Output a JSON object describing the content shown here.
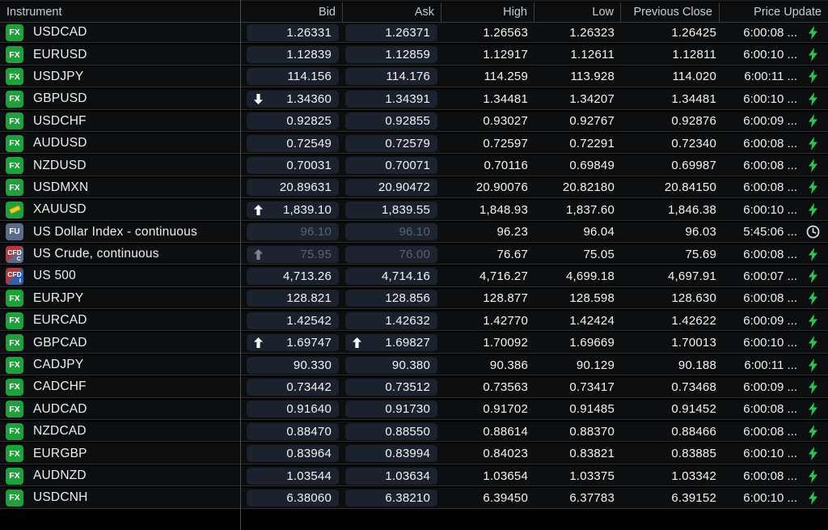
{
  "table": {
    "columns": [
      {
        "label": "Instrument"
      },
      {
        "label": "Bid"
      },
      {
        "label": "Ask"
      },
      {
        "label": "High"
      },
      {
        "label": "Low"
      },
      {
        "label": "Previous Close"
      },
      {
        "label": "Price Update"
      }
    ],
    "rows": [
      {
        "instrument": "USDCAD",
        "icon": "fx",
        "bid": "1.26331",
        "ask": "1.26371",
        "bid_arrow": null,
        "ask_arrow": null,
        "high": "1.26563",
        "low": "1.26323",
        "prev_close": "1.26425",
        "price_update": "6:00:08 ...",
        "status_icon": "lightning",
        "muted": false
      },
      {
        "instrument": "EURUSD",
        "icon": "fx",
        "bid": "1.12839",
        "ask": "1.12859",
        "bid_arrow": null,
        "ask_arrow": null,
        "high": "1.12917",
        "low": "1.12611",
        "prev_close": "1.12811",
        "price_update": "6:00:10 ...",
        "status_icon": "lightning",
        "muted": false
      },
      {
        "instrument": "USDJPY",
        "icon": "fx",
        "bid": "114.156",
        "ask": "114.176",
        "bid_arrow": null,
        "ask_arrow": null,
        "high": "114.259",
        "low": "113.928",
        "prev_close": "114.020",
        "price_update": "6:00:11 ...",
        "status_icon": "lightning",
        "muted": false
      },
      {
        "instrument": "GBPUSD",
        "icon": "fx",
        "bid": "1.34360",
        "ask": "1.34391",
        "bid_arrow": "down",
        "ask_arrow": null,
        "high": "1.34481",
        "low": "1.34207",
        "prev_close": "1.34481",
        "price_update": "6:00:10 ...",
        "status_icon": "lightning",
        "muted": false
      },
      {
        "instrument": "USDCHF",
        "icon": "fx",
        "bid": "0.92825",
        "ask": "0.92855",
        "bid_arrow": null,
        "ask_arrow": null,
        "high": "0.93027",
        "low": "0.92767",
        "prev_close": "0.92876",
        "price_update": "6:00:09 ...",
        "status_icon": "lightning",
        "muted": false
      },
      {
        "instrument": "AUDUSD",
        "icon": "fx",
        "bid": "0.72549",
        "ask": "0.72579",
        "bid_arrow": null,
        "ask_arrow": null,
        "high": "0.72597",
        "low": "0.72291",
        "prev_close": "0.72340",
        "price_update": "6:00:08 ...",
        "status_icon": "lightning",
        "muted": false
      },
      {
        "instrument": "NZDUSD",
        "icon": "fx",
        "bid": "0.70031",
        "ask": "0.70071",
        "bid_arrow": null,
        "ask_arrow": null,
        "high": "0.70116",
        "low": "0.69849",
        "prev_close": "0.69987",
        "price_update": "6:00:08 ...",
        "status_icon": "lightning",
        "muted": false
      },
      {
        "instrument": "USDMXN",
        "icon": "fx",
        "bid": "20.89631",
        "ask": "20.90472",
        "bid_arrow": null,
        "ask_arrow": null,
        "high": "20.90076",
        "low": "20.82180",
        "prev_close": "20.84150",
        "price_update": "6:00:08 ...",
        "status_icon": "lightning",
        "muted": false
      },
      {
        "instrument": "XAUUSD",
        "icon": "gold",
        "bid": "1,839.10",
        "ask": "1,839.55",
        "bid_arrow": "up",
        "ask_arrow": null,
        "high": "1,848.93",
        "low": "1,837.60",
        "prev_close": "1,846.38",
        "price_update": "6:00:10 ...",
        "status_icon": "lightning",
        "muted": false
      },
      {
        "instrument": "US Dollar Index - continuous",
        "icon": "fu",
        "bid": "96.10",
        "ask": "96.10",
        "bid_arrow": null,
        "ask_arrow": null,
        "high": "96.23",
        "low": "96.04",
        "prev_close": "96.03",
        "price_update": "5:45:06 ...",
        "status_icon": "clock",
        "muted": true
      },
      {
        "instrument": "US Crude, continuous",
        "icon": "cfd-c",
        "bid": "75.95",
        "ask": "76.00",
        "bid_arrow": "up-gray",
        "ask_arrow": null,
        "high": "76.67",
        "low": "75.05",
        "prev_close": "75.69",
        "price_update": "6:00:08 ...",
        "status_icon": "lightning",
        "muted": true
      },
      {
        "instrument": "US 500",
        "icon": "cfd-i",
        "bid": "4,713.26",
        "ask": "4,714.16",
        "bid_arrow": null,
        "ask_arrow": null,
        "high": "4,716.27",
        "low": "4,699.18",
        "prev_close": "4,697.91",
        "price_update": "6:00:07 ...",
        "status_icon": "lightning",
        "muted": false
      },
      {
        "instrument": "EURJPY",
        "icon": "fx",
        "bid": "128.821",
        "ask": "128.856",
        "bid_arrow": null,
        "ask_arrow": null,
        "high": "128.877",
        "low": "128.598",
        "prev_close": "128.630",
        "price_update": "6:00:08 ...",
        "status_icon": "lightning",
        "muted": false
      },
      {
        "instrument": "EURCAD",
        "icon": "fx",
        "bid": "1.42542",
        "ask": "1.42632",
        "bid_arrow": null,
        "ask_arrow": null,
        "high": "1.42770",
        "low": "1.42424",
        "prev_close": "1.42622",
        "price_update": "6:00:09 ...",
        "status_icon": "lightning",
        "muted": false
      },
      {
        "instrument": "GBPCAD",
        "icon": "fx",
        "bid": "1.69747",
        "ask": "1.69827",
        "bid_arrow": "up",
        "ask_arrow": "up",
        "high": "1.70092",
        "low": "1.69669",
        "prev_close": "1.70013",
        "price_update": "6:00:10 ...",
        "status_icon": "lightning",
        "muted": false
      },
      {
        "instrument": "CADJPY",
        "icon": "fx",
        "bid": "90.330",
        "ask": "90.380",
        "bid_arrow": null,
        "ask_arrow": null,
        "high": "90.386",
        "low": "90.129",
        "prev_close": "90.188",
        "price_update": "6:00:11 ...",
        "status_icon": "lightning",
        "muted": false
      },
      {
        "instrument": "CADCHF",
        "icon": "fx",
        "bid": "0.73442",
        "ask": "0.73512",
        "bid_arrow": null,
        "ask_arrow": null,
        "high": "0.73563",
        "low": "0.73417",
        "prev_close": "0.73468",
        "price_update": "6:00:09 ...",
        "status_icon": "lightning",
        "muted": false
      },
      {
        "instrument": "AUDCAD",
        "icon": "fx",
        "bid": "0.91640",
        "ask": "0.91730",
        "bid_arrow": null,
        "ask_arrow": null,
        "high": "0.91702",
        "low": "0.91485",
        "prev_close": "0.91452",
        "price_update": "6:00:08 ...",
        "status_icon": "lightning",
        "muted": false
      },
      {
        "instrument": "NZDCAD",
        "icon": "fx",
        "bid": "0.88470",
        "ask": "0.88550",
        "bid_arrow": null,
        "ask_arrow": null,
        "high": "0.88614",
        "low": "0.88370",
        "prev_close": "0.88466",
        "price_update": "6:00:08 ...",
        "status_icon": "lightning",
        "muted": false
      },
      {
        "instrument": "EURGBP",
        "icon": "fx",
        "bid": "0.83964",
        "ask": "0.83994",
        "bid_arrow": null,
        "ask_arrow": null,
        "high": "0.84023",
        "low": "0.83821",
        "prev_close": "0.83885",
        "price_update": "6:00:10 ...",
        "status_icon": "lightning",
        "muted": false
      },
      {
        "instrument": "AUDNZD",
        "icon": "fx",
        "bid": "1.03544",
        "ask": "1.03634",
        "bid_arrow": null,
        "ask_arrow": null,
        "high": "1.03654",
        "low": "1.03375",
        "prev_close": "1.03342",
        "price_update": "6:00:08 ...",
        "status_icon": "lightning",
        "muted": false
      },
      {
        "instrument": "USDCNH",
        "icon": "fx",
        "bid": "6.38060",
        "ask": "6.38210",
        "bid_arrow": null,
        "ask_arrow": null,
        "high": "6.39450",
        "low": "6.37783",
        "prev_close": "6.39152",
        "price_update": "6:00:10 ...",
        "status_icon": "lightning",
        "muted": false
      }
    ]
  },
  "colors": {
    "background": "#000000",
    "row_background": "#0d0e0f",
    "pill_background": "#1b222d",
    "fx_icon_green": "#1fa03d",
    "lightning_green": "#2fc157",
    "clock_gray": "#d7dbdf",
    "muted_text": "#59626f",
    "cfd_red": "#b03a3e",
    "cfd_slate": "#5d6c84",
    "cfd_blue": "#2f5fb0",
    "fu_slate": "#5b6a89",
    "gold_yellow": "#f2cf1f"
  }
}
